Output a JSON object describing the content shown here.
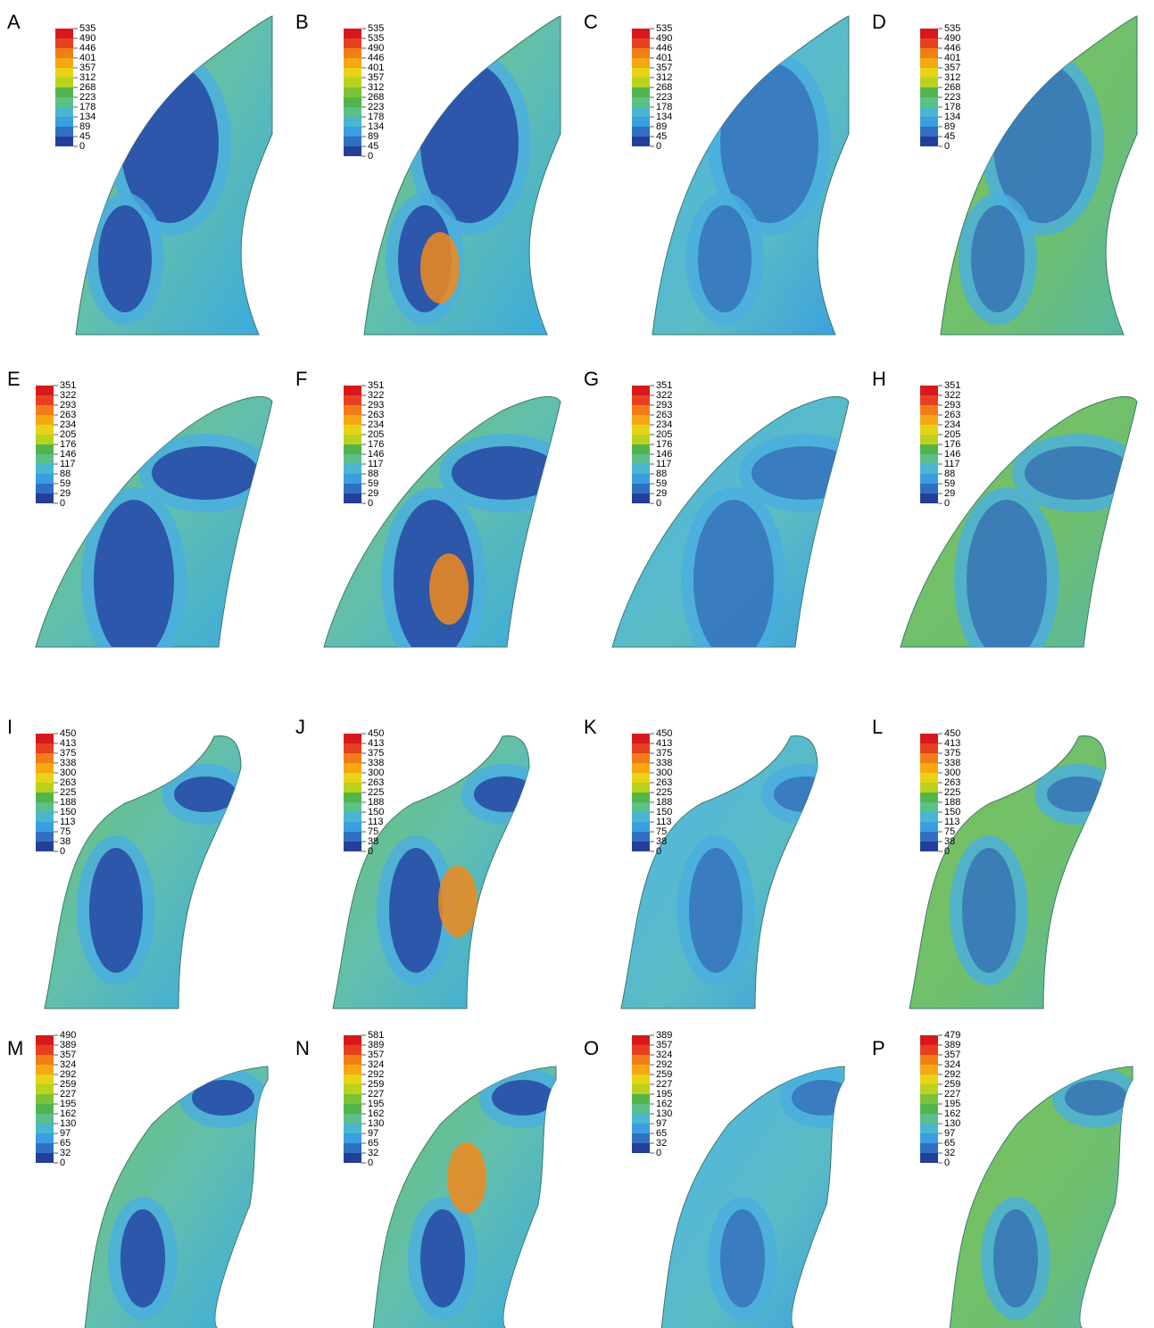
{
  "panels": [
    {
      "label": "A",
      "legend": [
        535,
        490,
        446,
        401,
        357,
        312,
        268,
        223,
        178,
        134,
        89,
        45,
        0
      ]
    },
    {
      "label": "B",
      "legend": [
        535,
        535,
        490,
        446,
        401,
        357,
        312,
        268,
        223,
        178,
        134,
        89,
        45,
        0
      ]
    },
    {
      "label": "C",
      "legend": [
        535,
        490,
        446,
        401,
        357,
        312,
        268,
        223,
        178,
        134,
        89,
        45,
        0
      ]
    },
    {
      "label": "D",
      "legend": [
        535,
        490,
        446,
        401,
        357,
        312,
        268,
        223,
        178,
        134,
        89,
        45,
        0
      ]
    },
    {
      "label": "E",
      "legend": [
        351,
        322,
        293,
        263,
        234,
        205,
        176,
        146,
        117,
        88,
        59,
        29,
        0
      ]
    },
    {
      "label": "F",
      "legend": [
        351,
        322,
        293,
        263,
        234,
        205,
        176,
        146,
        117,
        88,
        59,
        29,
        0
      ]
    },
    {
      "label": "G",
      "legend": [
        351,
        322,
        293,
        263,
        234,
        205,
        176,
        146,
        117,
        88,
        59,
        29,
        0
      ]
    },
    {
      "label": "H",
      "legend": [
        351,
        322,
        293,
        263,
        234,
        205,
        176,
        146,
        117,
        88,
        59,
        29,
        0
      ]
    },
    {
      "label": "I",
      "legend": [
        450,
        413,
        375,
        338,
        300,
        263,
        225,
        188,
        150,
        113,
        75,
        38,
        0
      ]
    },
    {
      "label": "J",
      "legend": [
        450,
        413,
        375,
        338,
        300,
        263,
        225,
        188,
        150,
        113,
        75,
        38,
        0
      ]
    },
    {
      "label": "K",
      "legend": [
        450,
        413,
        375,
        338,
        300,
        263,
        225,
        188,
        150,
        113,
        75,
        38,
        0
      ]
    },
    {
      "label": "L",
      "legend": [
        450,
        413,
        375,
        338,
        300,
        263,
        225,
        188,
        150,
        113,
        75,
        38,
        0
      ]
    },
    {
      "label": "M",
      "legend": [
        490,
        389,
        357,
        324,
        292,
        259,
        227,
        195,
        162,
        130,
        97,
        65,
        32,
        0
      ]
    },
    {
      "label": "N",
      "legend": [
        581,
        389,
        357,
        324,
        292,
        259,
        227,
        195,
        162,
        130,
        97,
        65,
        32,
        0
      ]
    },
    {
      "label": "O",
      "legend": [
        389,
        357,
        324,
        292,
        259,
        227,
        195,
        162,
        130,
        97,
        65,
        32,
        0
      ]
    },
    {
      "label": "P",
      "legend": [
        479,
        389,
        357,
        324,
        292,
        259,
        227,
        195,
        162,
        130,
        97,
        65,
        32,
        0
      ]
    }
  ]
}
